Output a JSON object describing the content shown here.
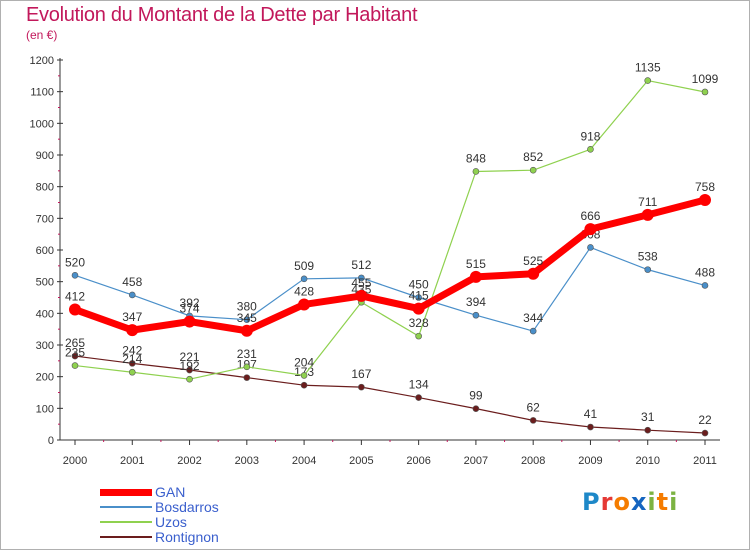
{
  "title": "Evolution du Montant de la Dette par Habitant",
  "subtitle": "(en €)",
  "colors": {
    "title": "#c2185b",
    "GAN": "#ff0000",
    "Bosdarros": "#4a8fc9",
    "Uzos": "#8fd14f",
    "Rontignon": "#6b1d1d"
  },
  "logo": {
    "text": "Proxiti",
    "letters": [
      "P",
      "r",
      "o",
      "x",
      "i",
      "t",
      "i"
    ],
    "letter_colors": [
      "#1e88c8",
      "#e53935",
      "#f57c00",
      "#1565c0",
      "#7cb342",
      "#f57c00",
      "#7cb342"
    ]
  },
  "chart_data": {
    "type": "line",
    "title": "Evolution du Montant de la Dette par Habitant",
    "subtitle": "(en €)",
    "x": [
      "2000",
      "2001",
      "2002",
      "2003",
      "2004",
      "2005",
      "2006",
      "2007",
      "2008",
      "2009",
      "2010",
      "2011"
    ],
    "ylim": [
      0,
      1200
    ],
    "yticks": [
      0,
      100,
      200,
      300,
      400,
      500,
      600,
      700,
      800,
      900,
      1000,
      1100,
      1200
    ],
    "grid": false,
    "legend": "bottom-left",
    "series": [
      {
        "name": "GAN",
        "color": "#ff0000",
        "values": [
          412,
          347,
          374,
          345,
          428,
          455,
          415,
          515,
          525,
          666,
          711,
          758
        ]
      },
      {
        "name": "Bosdarros",
        "color": "#4a8fc9",
        "values": [
          520,
          458,
          392,
          380,
          509,
          512,
          450,
          394,
          344,
          608,
          538,
          488
        ]
      },
      {
        "name": "Uzos",
        "color": "#8fd14f",
        "values": [
          235,
          214,
          192,
          231,
          204,
          435,
          328,
          848,
          852,
          918,
          1135,
          1099
        ]
      },
      {
        "name": "Rontignon",
        "color": "#6b1d1d",
        "values": [
          265,
          242,
          221,
          197,
          173,
          167,
          134,
          99,
          62,
          41,
          31,
          22
        ]
      }
    ]
  }
}
